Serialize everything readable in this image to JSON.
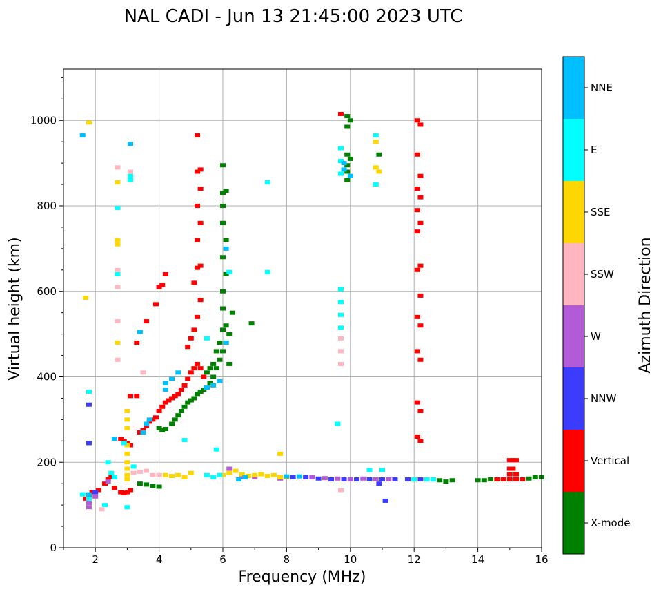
{
  "chart_data": {
    "type": "scatter",
    "title": "NAL CADI - Jun 13 21:45:00 2023 UTC",
    "xlabel": "Frequency (MHz)",
    "ylabel": "Virtual height (km)",
    "xlim": [
      1,
      16
    ],
    "ylim": [
      0,
      1120
    ],
    "xticks": [
      2,
      4,
      6,
      8,
      10,
      12,
      14,
      16
    ],
    "yticks": [
      0,
      200,
      400,
      600,
      800,
      1000
    ],
    "grid": true,
    "colorbar": {
      "title": "Azimuth Direction",
      "entries": [
        {
          "label": "X-mode",
          "color": "#008000"
        },
        {
          "label": "Vertical",
          "color": "#ff0000"
        },
        {
          "label": "NNW",
          "color": "#3c3cff"
        },
        {
          "label": "W",
          "color": "#b35ad6"
        },
        {
          "label": "SSW",
          "color": "#ffb6c1"
        },
        {
          "label": "SSE",
          "color": "#ffd700"
        },
        {
          "label": "E",
          "color": "#00ffff"
        },
        {
          "label": "NNE",
          "color": "#00bfff"
        }
      ]
    },
    "series": [
      {
        "name": "Vertical",
        "points": [
          [
            1.7,
            115
          ],
          [
            1.9,
            130
          ],
          [
            2.1,
            135
          ],
          [
            2.3,
            150
          ],
          [
            2.4,
            160
          ],
          [
            2.5,
            165
          ],
          [
            2.6,
            140
          ],
          [
            2.8,
            130
          ],
          [
            2.9,
            128
          ],
          [
            3.0,
            130
          ],
          [
            3.1,
            135
          ],
          [
            2.8,
            255
          ],
          [
            2.9,
            250
          ],
          [
            3.0,
            245
          ],
          [
            3.1,
            240
          ],
          [
            3.4,
            270
          ],
          [
            3.5,
            275
          ],
          [
            3.6,
            285
          ],
          [
            3.7,
            295
          ],
          [
            3.8,
            300
          ],
          [
            3.9,
            305
          ],
          [
            4.0,
            320
          ],
          [
            4.1,
            330
          ],
          [
            4.2,
            340
          ],
          [
            4.3,
            345
          ],
          [
            4.4,
            350
          ],
          [
            4.5,
            355
          ],
          [
            4.6,
            360
          ],
          [
            4.7,
            370
          ],
          [
            4.8,
            380
          ],
          [
            4.9,
            395
          ],
          [
            5.0,
            410
          ],
          [
            5.0,
            345
          ],
          [
            5.1,
            420
          ],
          [
            5.2,
            430
          ],
          [
            5.3,
            420
          ],
          [
            5.4,
            400
          ],
          [
            4.9,
            470
          ],
          [
            5.0,
            490
          ],
          [
            5.1,
            510
          ],
          [
            5.2,
            540
          ],
          [
            5.3,
            580
          ],
          [
            5.1,
            620
          ],
          [
            5.2,
            655
          ],
          [
            5.3,
            660
          ],
          [
            5.2,
            720
          ],
          [
            5.3,
            760
          ],
          [
            5.2,
            800
          ],
          [
            5.3,
            840
          ],
          [
            5.2,
            880
          ],
          [
            5.3,
            885
          ],
          [
            5.2,
            965
          ],
          [
            3.9,
            570
          ],
          [
            4.0,
            610
          ],
          [
            4.1,
            615
          ],
          [
            4.2,
            640
          ],
          [
            3.6,
            530
          ],
          [
            3.3,
            480
          ],
          [
            3.1,
            355
          ],
          [
            3.3,
            355
          ],
          [
            12.1,
            1000
          ],
          [
            12.2,
            990
          ],
          [
            12.1,
            920
          ],
          [
            12.2,
            870
          ],
          [
            12.1,
            840
          ],
          [
            12.2,
            820
          ],
          [
            12.1,
            790
          ],
          [
            12.2,
            760
          ],
          [
            12.1,
            740
          ],
          [
            12.2,
            660
          ],
          [
            12.1,
            650
          ],
          [
            12.2,
            590
          ],
          [
            12.1,
            540
          ],
          [
            12.2,
            520
          ],
          [
            12.1,
            460
          ],
          [
            12.2,
            440
          ],
          [
            12.1,
            340
          ],
          [
            12.2,
            320
          ],
          [
            12.1,
            260
          ],
          [
            12.2,
            250
          ],
          [
            14.6,
            160
          ],
          [
            14.8,
            160
          ],
          [
            15.0,
            160
          ],
          [
            15.2,
            160
          ],
          [
            15.4,
            160
          ],
          [
            15.0,
            205
          ],
          [
            15.1,
            205
          ],
          [
            15.2,
            205
          ],
          [
            15.0,
            185
          ],
          [
            15.1,
            185
          ],
          [
            15.0,
            172
          ],
          [
            15.2,
            172
          ],
          [
            9.7,
            1015
          ]
        ]
      },
      {
        "name": "X-mode",
        "points": [
          [
            3.4,
            150
          ],
          [
            3.6,
            148
          ],
          [
            3.8,
            145
          ],
          [
            4.0,
            143
          ],
          [
            4.0,
            280
          ],
          [
            4.1,
            275
          ],
          [
            4.2,
            278
          ],
          [
            4.4,
            290
          ],
          [
            4.5,
            300
          ],
          [
            4.6,
            310
          ],
          [
            4.7,
            320
          ],
          [
            4.8,
            330
          ],
          [
            4.9,
            340
          ],
          [
            5.0,
            345
          ],
          [
            5.1,
            350
          ],
          [
            5.2,
            360
          ],
          [
            5.3,
            365
          ],
          [
            5.4,
            370
          ],
          [
            5.5,
            375
          ],
          [
            5.6,
            385
          ],
          [
            5.7,
            400
          ],
          [
            5.8,
            420
          ],
          [
            5.9,
            440
          ],
          [
            6.0,
            460
          ],
          [
            6.1,
            480
          ],
          [
            6.2,
            500
          ],
          [
            6.3,
            550
          ],
          [
            5.5,
            410
          ],
          [
            5.6,
            420
          ],
          [
            5.7,
            430
          ],
          [
            5.8,
            460
          ],
          [
            5.9,
            480
          ],
          [
            6.0,
            510
          ],
          [
            6.1,
            520
          ],
          [
            6.2,
            430
          ],
          [
            6.0,
            560
          ],
          [
            6.0,
            600
          ],
          [
            6.1,
            640
          ],
          [
            6.0,
            680
          ],
          [
            6.1,
            720
          ],
          [
            6.0,
            760
          ],
          [
            6.0,
            800
          ],
          [
            6.0,
            830
          ],
          [
            6.1,
            835
          ],
          [
            6.0,
            895
          ],
          [
            9.9,
            1010
          ],
          [
            10.0,
            1000
          ],
          [
            9.9,
            985
          ],
          [
            9.9,
            920
          ],
          [
            10.0,
            910
          ],
          [
            9.9,
            895
          ],
          [
            9.9,
            880
          ],
          [
            9.9,
            860
          ],
          [
            10.9,
            920
          ],
          [
            6.9,
            525
          ],
          [
            12.8,
            158
          ],
          [
            13.0,
            155
          ],
          [
            13.2,
            158
          ],
          [
            14.0,
            158
          ],
          [
            14.2,
            158
          ],
          [
            14.4,
            160
          ],
          [
            15.6,
            162
          ],
          [
            15.8,
            165
          ],
          [
            16.0,
            165
          ]
        ]
      },
      {
        "name": "NNW",
        "points": [
          [
            1.8,
            120
          ],
          [
            2.0,
            130
          ],
          [
            8.2,
            165
          ],
          [
            8.6,
            165
          ],
          [
            9.0,
            162
          ],
          [
            9.4,
            160
          ],
          [
            9.8,
            160
          ],
          [
            10.2,
            160
          ],
          [
            10.6,
            160
          ],
          [
            11.0,
            160
          ],
          [
            11.4,
            160
          ],
          [
            11.8,
            160
          ],
          [
            12.2,
            160
          ],
          [
            10.9,
            150
          ],
          [
            11.1,
            110
          ],
          [
            1.8,
            335
          ],
          [
            1.8,
            245
          ]
        ]
      },
      {
        "name": "W",
        "points": [
          [
            1.8,
            95
          ],
          [
            2.0,
            120
          ],
          [
            2.4,
            155
          ],
          [
            6.6,
            165
          ],
          [
            7.0,
            165
          ],
          [
            8.8,
            165
          ],
          [
            9.2,
            163
          ],
          [
            9.6,
            162
          ],
          [
            10.0,
            160
          ],
          [
            10.4,
            162
          ],
          [
            10.8,
            160
          ],
          [
            11.2,
            160
          ],
          [
            7.8,
            162
          ],
          [
            6.2,
            185
          ],
          [
            1.8,
            105
          ]
        ]
      },
      {
        "name": "SSW",
        "points": [
          [
            2.2,
            90
          ],
          [
            3.2,
            175
          ],
          [
            3.4,
            178
          ],
          [
            3.6,
            180
          ],
          [
            3.8,
            170
          ],
          [
            4.0,
            170
          ],
          [
            9.7,
            490
          ],
          [
            9.7,
            460
          ],
          [
            9.7,
            430
          ],
          [
            9.7,
            135
          ],
          [
            2.7,
            650
          ],
          [
            2.7,
            610
          ],
          [
            2.7,
            530
          ],
          [
            2.7,
            440
          ],
          [
            3.5,
            410
          ],
          [
            2.7,
            890
          ],
          [
            3.1,
            880
          ]
        ]
      },
      {
        "name": "SSE",
        "points": [
          [
            1.8,
            995
          ],
          [
            1.7,
            585
          ],
          [
            2.7,
            855
          ],
          [
            2.7,
            720
          ],
          [
            2.7,
            710
          ],
          [
            2.7,
            480
          ],
          [
            3.0,
            320
          ],
          [
            3.0,
            300
          ],
          [
            3.0,
            280
          ],
          [
            3.0,
            240
          ],
          [
            3.0,
            220
          ],
          [
            3.0,
            200
          ],
          [
            3.0,
            185
          ],
          [
            3.0,
            170
          ],
          [
            3.0,
            160
          ],
          [
            4.2,
            170
          ],
          [
            4.4,
            168
          ],
          [
            4.6,
            170
          ],
          [
            4.8,
            165
          ],
          [
            5.0,
            175
          ],
          [
            6.0,
            170
          ],
          [
            6.2,
            175
          ],
          [
            6.4,
            180
          ],
          [
            6.6,
            172
          ],
          [
            6.8,
            168
          ],
          [
            7.0,
            170
          ],
          [
            7.2,
            172
          ],
          [
            7.4,
            168
          ],
          [
            7.6,
            170
          ],
          [
            7.8,
            165
          ],
          [
            8.0,
            165
          ],
          [
            10.8,
            950
          ],
          [
            10.8,
            890
          ],
          [
            10.9,
            880
          ],
          [
            7.8,
            220
          ]
        ]
      },
      {
        "name": "E",
        "points": [
          [
            1.6,
            125
          ],
          [
            1.8,
            115
          ],
          [
            2.3,
            100
          ],
          [
            2.4,
            200
          ],
          [
            2.5,
            175
          ],
          [
            2.6,
            165
          ],
          [
            2.7,
            795
          ],
          [
            2.7,
            640
          ],
          [
            3.1,
            870
          ],
          [
            3.1,
            860
          ],
          [
            3.0,
            95
          ],
          [
            2.9,
            245
          ],
          [
            3.2,
            190
          ],
          [
            5.5,
            170
          ],
          [
            5.7,
            165
          ],
          [
            5.9,
            170
          ],
          [
            7.4,
            855
          ],
          [
            7.4,
            645
          ],
          [
            9.6,
            290
          ],
          [
            9.7,
            605
          ],
          [
            9.7,
            575
          ],
          [
            9.7,
            545
          ],
          [
            9.7,
            515
          ],
          [
            9.7,
            935
          ],
          [
            9.7,
            905
          ],
          [
            9.7,
            875
          ],
          [
            10.8,
            965
          ],
          [
            10.8,
            850
          ],
          [
            10.6,
            182
          ],
          [
            11.0,
            182
          ],
          [
            12.0,
            160
          ],
          [
            12.4,
            160
          ],
          [
            12.6,
            160
          ],
          [
            5.5,
            490
          ],
          [
            6.2,
            645
          ],
          [
            4.8,
            252
          ],
          [
            5.8,
            230
          ],
          [
            1.8,
            365
          ]
        ]
      },
      {
        "name": "NNE",
        "points": [
          [
            1.8,
            125
          ],
          [
            3.5,
            270
          ],
          [
            3.6,
            290
          ],
          [
            3.7,
            300
          ],
          [
            4.2,
            385
          ],
          [
            4.2,
            370
          ],
          [
            4.4,
            395
          ],
          [
            4.6,
            410
          ],
          [
            5.5,
            375
          ],
          [
            5.7,
            380
          ],
          [
            5.9,
            390
          ],
          [
            6.1,
            480
          ],
          [
            6.1,
            700
          ],
          [
            9.8,
            900
          ],
          [
            9.8,
            885
          ],
          [
            10.0,
            870
          ],
          [
            6.5,
            160
          ],
          [
            6.7,
            165
          ],
          [
            8.0,
            167
          ],
          [
            8.4,
            167
          ],
          [
            3.4,
            505
          ],
          [
            2.6,
            255
          ],
          [
            1.6,
            965
          ],
          [
            3.1,
            945
          ]
        ]
      }
    ]
  }
}
